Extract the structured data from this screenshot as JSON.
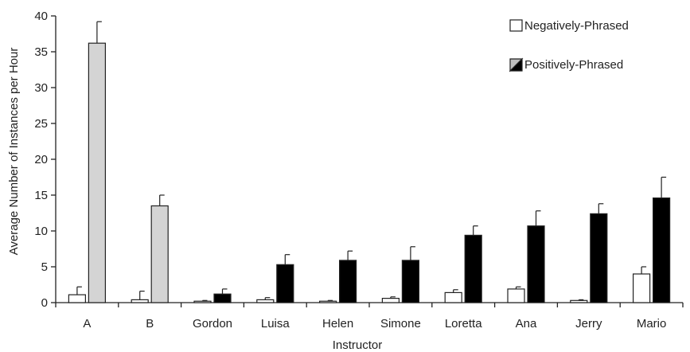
{
  "chart_data": {
    "type": "bar",
    "title": "",
    "xlabel": "Instructor",
    "ylabel": "Average Number of Instances per Hour",
    "ylim": [
      0,
      40
    ],
    "yticks": [
      0,
      5,
      10,
      15,
      20,
      25,
      30,
      35,
      40
    ],
    "grid": false,
    "legend_position": "top-right",
    "categories": [
      "A",
      "B",
      "Gordon",
      "Luisa",
      "Helen",
      "Simone",
      "Loretta",
      "Ana",
      "Jerry",
      "Mario"
    ],
    "series": [
      {
        "name": "Negatively-Phrased",
        "values": [
          1.1,
          0.4,
          0.2,
          0.4,
          0.2,
          0.6,
          1.4,
          1.9,
          0.3,
          4.0
        ],
        "errors": [
          1.1,
          1.2,
          0.1,
          0.3,
          0.1,
          0.2,
          0.4,
          0.3,
          0.1,
          1.0
        ],
        "fill": "#ffffff"
      },
      {
        "name": "Positively-Phrased",
        "values": [
          36.2,
          13.5,
          1.2,
          5.3,
          5.9,
          5.9,
          9.4,
          10.7,
          12.4,
          14.6
        ],
        "errors": [
          3.0,
          1.5,
          0.7,
          1.4,
          1.3,
          1.9,
          1.3,
          2.1,
          1.4,
          2.9
        ],
        "fill_by_category": [
          "#d4d4d4",
          "#d4d4d4",
          "#000000",
          "#000000",
          "#000000",
          "#000000",
          "#000000",
          "#000000",
          "#000000",
          "#000000"
        ]
      }
    ]
  }
}
